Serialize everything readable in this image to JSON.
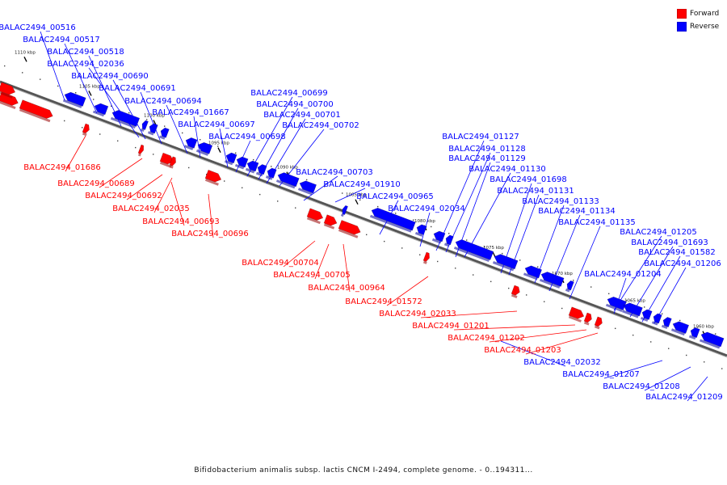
{
  "legend": {
    "forward_label": "Forward",
    "reverse_label": "Reverse",
    "forward_color": "#ff0000",
    "reverse_color": "#0000ff"
  },
  "caption": "Bifidobacterium animalis subsp. lactis CNCM I-2494, complete genome. - 0..194311...",
  "kbp_ticks": [
    "1110 kbp",
    "1105 kbp",
    "1100 kbp",
    "1095 kbp",
    "1090 kbp",
    "1085 kbp",
    "1080 kbp",
    "1075 kbp",
    "1070 kbp",
    "1065 kbp",
    "1060 kbp"
  ],
  "reverse_labels": [
    "BALAC2494_00516",
    "BALAC2494_00517",
    "BALAC2494_00518",
    "BALAC2494_02036",
    "BALAC2494_00690",
    "BALAC2494_00691",
    "BALAC2494_00694",
    "BALAC2494_01667",
    "BALAC2494_00697",
    "BALAC2494_00698",
    "BALAC2494_00699",
    "BALAC2494_00700",
    "BALAC2494_00701",
    "BALAC2494_00702",
    "BALAC2494_00703",
    "BALAC2494_01910",
    "BALAC2494_00965",
    "BALAC2494_02034",
    "BALAC2494_01127",
    "BALAC2494_01128",
    "BALAC2494_01129",
    "BALAC2494_01130",
    "BALAC2494_01698",
    "BALAC2494_01131",
    "BALAC2494_01133",
    "BALAC2494_01134",
    "BALAC2494_01135",
    "BALAC2494_01205",
    "BALAC2494_01693",
    "BALAC2494_01582",
    "BALAC2494_01206",
    "BALAC2494_01204",
    "BALAC2494_02032",
    "BALAC2494_01207",
    "BALAC2494_01208",
    "BALAC2494_01209"
  ],
  "forward_labels": [
    "BALAC2494_01686",
    "BALAC2494_00689",
    "BALAC2494_00692",
    "BALAC2494_02035",
    "BALAC2494_00693",
    "BALAC2494_00696",
    "BALAC2494_00704",
    "BALAC2494_00705",
    "BALAC2494_00964",
    "BALAC2494_01572",
    "BALAC2494_02033",
    "BALAC2494_01201",
    "BALAC2494_01202",
    "BALAC2494_01203"
  ]
}
